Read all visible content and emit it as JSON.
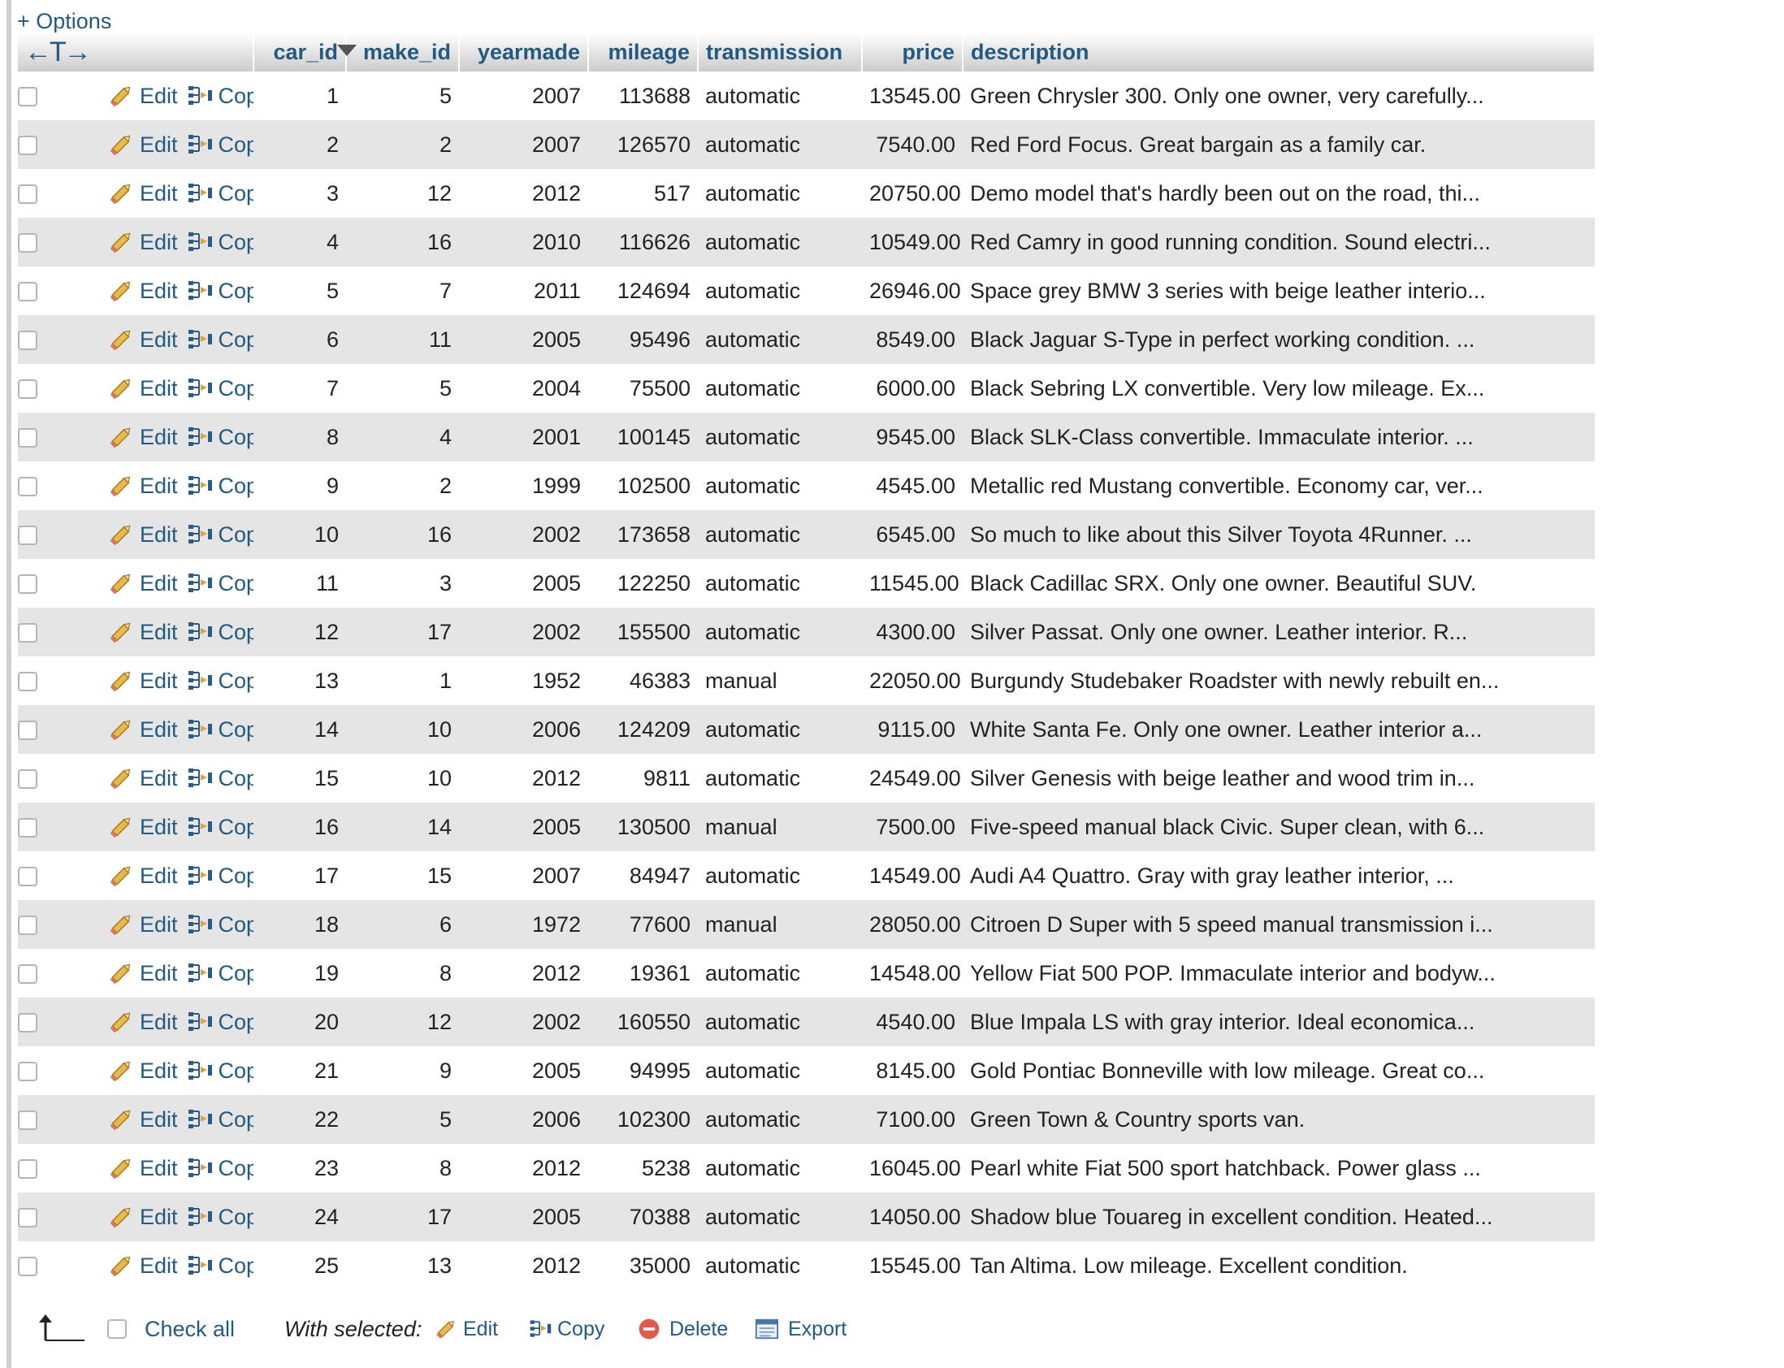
{
  "options_label": "+ Options",
  "header": {
    "colresize_glyph": "←T→",
    "columns": [
      "car_id",
      "make_id",
      "yearmade",
      "mileage",
      "transmission",
      "price",
      "description"
    ]
  },
  "row_actions": {
    "edit": "Edit",
    "copy": "Copy",
    "delete": "Delete"
  },
  "rows": [
    {
      "car_id": "1",
      "make_id": "5",
      "yearmade": "2007",
      "mileage": "113688",
      "transmission": "automatic",
      "price": "13545.00",
      "description": "Green Chrysler 300. Only one owner, very carefully..."
    },
    {
      "car_id": "2",
      "make_id": "2",
      "yearmade": "2007",
      "mileage": "126570",
      "transmission": "automatic",
      "price": "7540.00",
      "description": "Red Ford Focus. Great bargain as a family car."
    },
    {
      "car_id": "3",
      "make_id": "12",
      "yearmade": "2012",
      "mileage": "517",
      "transmission": "automatic",
      "price": "20750.00",
      "description": "Demo model that's hardly been out on the road, thi..."
    },
    {
      "car_id": "4",
      "make_id": "16",
      "yearmade": "2010",
      "mileage": "116626",
      "transmission": "automatic",
      "price": "10549.00",
      "description": "Red Camry in good running condition. Sound electri..."
    },
    {
      "car_id": "5",
      "make_id": "7",
      "yearmade": "2011",
      "mileage": "124694",
      "transmission": "automatic",
      "price": "26946.00",
      "description": "Space grey BMW 3 series with beige leather interio..."
    },
    {
      "car_id": "6",
      "make_id": "11",
      "yearmade": "2005",
      "mileage": "95496",
      "transmission": "automatic",
      "price": "8549.00",
      "description": "Black Jaguar S-Type in perfect working condition. ..."
    },
    {
      "car_id": "7",
      "make_id": "5",
      "yearmade": "2004",
      "mileage": "75500",
      "transmission": "automatic",
      "price": "6000.00",
      "description": "Black Sebring LX convertible. Very low mileage. Ex..."
    },
    {
      "car_id": "8",
      "make_id": "4",
      "yearmade": "2001",
      "mileage": "100145",
      "transmission": "automatic",
      "price": "9545.00",
      "description": "Black SLK-Class convertible. Immaculate interior. ..."
    },
    {
      "car_id": "9",
      "make_id": "2",
      "yearmade": "1999",
      "mileage": "102500",
      "transmission": "automatic",
      "price": "4545.00",
      "description": "Metallic red Mustang convertible. Economy car, ver..."
    },
    {
      "car_id": "10",
      "make_id": "16",
      "yearmade": "2002",
      "mileage": "173658",
      "transmission": "automatic",
      "price": "6545.00",
      "description": "So much to like about this Silver Toyota 4Runner. ..."
    },
    {
      "car_id": "11",
      "make_id": "3",
      "yearmade": "2005",
      "mileage": "122250",
      "transmission": "automatic",
      "price": "11545.00",
      "description": "Black Cadillac SRX. Only one owner. Beautiful SUV."
    },
    {
      "car_id": "12",
      "make_id": "17",
      "yearmade": "2002",
      "mileage": "155500",
      "transmission": "automatic",
      "price": "4300.00",
      "description": "Silver Passat. Only one owner. Leather interior. R..."
    },
    {
      "car_id": "13",
      "make_id": "1",
      "yearmade": "1952",
      "mileage": "46383",
      "transmission": "manual",
      "price": "22050.00",
      "description": "Burgundy Studebaker Roadster with newly rebuilt en..."
    },
    {
      "car_id": "14",
      "make_id": "10",
      "yearmade": "2006",
      "mileage": "124209",
      "transmission": "automatic",
      "price": "9115.00",
      "description": "White Santa Fe. Only one owner. Leather interior a..."
    },
    {
      "car_id": "15",
      "make_id": "10",
      "yearmade": "2012",
      "mileage": "9811",
      "transmission": "automatic",
      "price": "24549.00",
      "description": "Silver Genesis with beige leather and wood trim in..."
    },
    {
      "car_id": "16",
      "make_id": "14",
      "yearmade": "2005",
      "mileage": "130500",
      "transmission": "manual",
      "price": "7500.00",
      "description": "Five-speed manual black Civic. Super clean, with 6..."
    },
    {
      "car_id": "17",
      "make_id": "15",
      "yearmade": "2007",
      "mileage": "84947",
      "transmission": "automatic",
      "price": "14549.00",
      "description": "Audi A4 Quattro. Gray with gray leather interior, ..."
    },
    {
      "car_id": "18",
      "make_id": "6",
      "yearmade": "1972",
      "mileage": "77600",
      "transmission": "manual",
      "price": "28050.00",
      "description": "Citroen D Super with 5 speed manual transmission i..."
    },
    {
      "car_id": "19",
      "make_id": "8",
      "yearmade": "2012",
      "mileage": "19361",
      "transmission": "automatic",
      "price": "14548.00",
      "description": "Yellow Fiat 500 POP. Immaculate interior and bodyw..."
    },
    {
      "car_id": "20",
      "make_id": "12",
      "yearmade": "2002",
      "mileage": "160550",
      "transmission": "automatic",
      "price": "4540.00",
      "description": "Blue Impala LS with gray interior. Ideal economica..."
    },
    {
      "car_id": "21",
      "make_id": "9",
      "yearmade": "2005",
      "mileage": "94995",
      "transmission": "automatic",
      "price": "8145.00",
      "description": "Gold Pontiac Bonneville with low mileage. Great co..."
    },
    {
      "car_id": "22",
      "make_id": "5",
      "yearmade": "2006",
      "mileage": "102300",
      "transmission": "automatic",
      "price": "7100.00",
      "description": "Green Town & Country sports van."
    },
    {
      "car_id": "23",
      "make_id": "8",
      "yearmade": "2012",
      "mileage": "5238",
      "transmission": "automatic",
      "price": "16045.00",
      "description": "Pearl white Fiat 500 sport hatchback. Power glass ..."
    },
    {
      "car_id": "24",
      "make_id": "17",
      "yearmade": "2005",
      "mileage": "70388",
      "transmission": "automatic",
      "price": "14050.00",
      "description": "Shadow blue Touareg in excellent condition. Heated..."
    },
    {
      "car_id": "25",
      "make_id": "13",
      "yearmade": "2012",
      "mileage": "35000",
      "transmission": "automatic",
      "price": "15545.00",
      "description": "Tan Altima. Low mileage. Excellent condition."
    }
  ],
  "footer": {
    "check_all": "Check all",
    "with_selected": "With selected:",
    "edit": "Edit",
    "copy": "Copy",
    "delete": "Delete",
    "export": "Export"
  },
  "colors": {
    "link": "#235a81",
    "row_alt": "#e5e5e5",
    "delete_icon": "#e05a4b",
    "edit_icon": "#d9a441"
  },
  "icons": [
    "pencil-icon",
    "copy-icon",
    "delete-icon",
    "export-icon",
    "arrow-up-icon",
    "sort-arrow-icon"
  ]
}
